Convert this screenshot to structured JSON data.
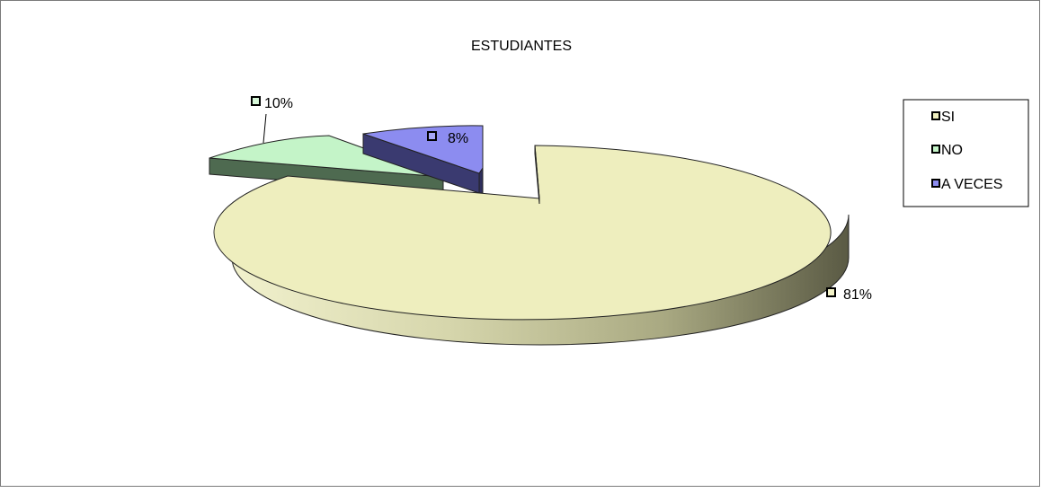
{
  "chart_data": {
    "type": "pie",
    "title": "ESTUDIANTES",
    "three_d": true,
    "exploded": true,
    "legend_position": "right",
    "slices": [
      {
        "name": "SI",
        "value": 81,
        "label": "81%",
        "color": "#eeeebe",
        "side_color": "#8c8c68",
        "label_box": "#f3f3c8"
      },
      {
        "name": "NO",
        "value": 10,
        "label": "10%",
        "color": "#c4f4c8",
        "side_color": "#4e6a50",
        "label_box": "#d6f7d8"
      },
      {
        "name": "A VECES",
        "value": 8,
        "label": "8%",
        "color": "#8c8cf0",
        "side_color": "#3a3a70",
        "label_box": "#a6a6f5"
      }
    ]
  }
}
